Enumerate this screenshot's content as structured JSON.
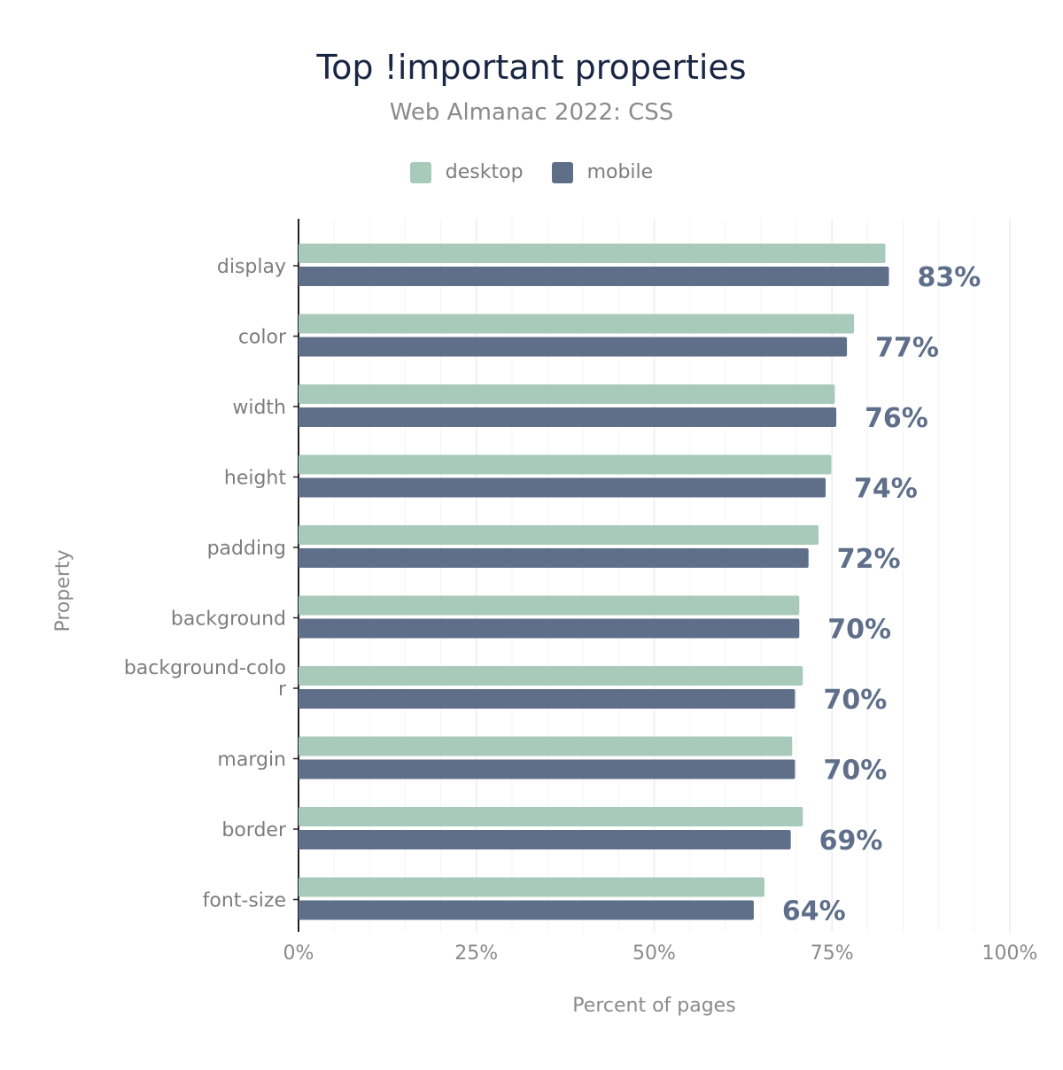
{
  "chart_data": {
    "type": "bar",
    "orientation": "horizontal",
    "title": "Top !important properties",
    "subtitle": "Web Almanac 2022: CSS",
    "xlabel": "Percent of pages",
    "ylabel": "Property",
    "xlim": [
      0,
      100
    ],
    "x_ticks": [
      "0%",
      "25%",
      "50%",
      "75%",
      "100%"
    ],
    "categories": [
      "display",
      "color",
      "width",
      "height",
      "padding",
      "background",
      "background-color",
      "margin",
      "border",
      "font-size"
    ],
    "category_label_lines": [
      [
        "display"
      ],
      [
        "color"
      ],
      [
        "width"
      ],
      [
        "height"
      ],
      [
        "padding"
      ],
      [
        "background"
      ],
      [
        "background-colo",
        "r"
      ],
      [
        "margin"
      ],
      [
        "border"
      ],
      [
        "font-size"
      ]
    ],
    "series": [
      {
        "name": "desktop",
        "color": "#a8cabb",
        "values": [
          82.5,
          78.1,
          75.4,
          74.9,
          73.1,
          70.4,
          70.9,
          69.4,
          70.9,
          65.5
        ]
      },
      {
        "name": "mobile",
        "color": "#5f6f8a",
        "values": [
          83.0,
          77.1,
          75.6,
          74.1,
          71.7,
          70.4,
          69.8,
          69.8,
          69.2,
          64.0
        ]
      }
    ],
    "data_labels": [
      "83%",
      "77%",
      "76%",
      "74%",
      "72%",
      "70%",
      "70%",
      "70%",
      "69%",
      "64%"
    ],
    "legend_position": "top-center",
    "grid": true
  }
}
